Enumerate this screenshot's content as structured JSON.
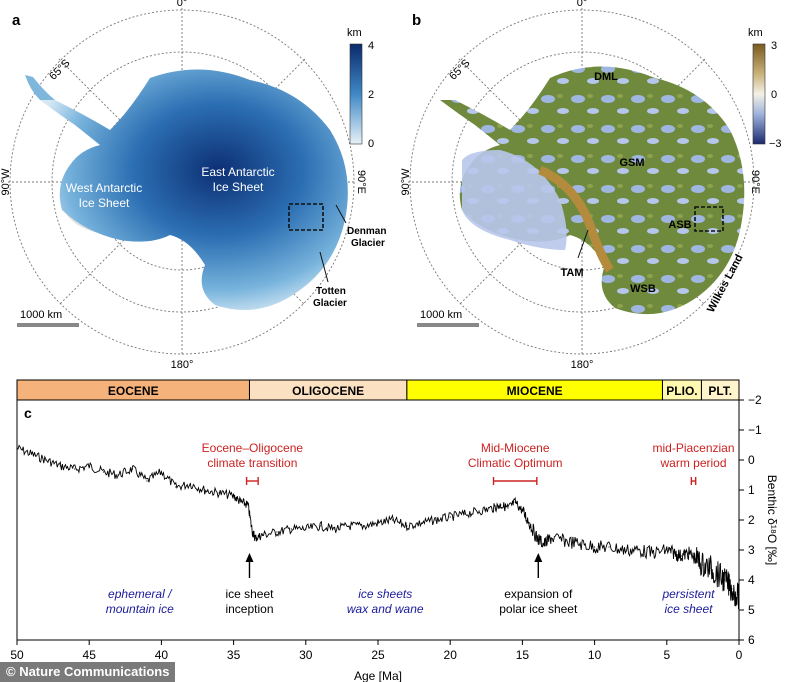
{
  "panel_a": {
    "letter": "a",
    "labels": {
      "top": "0°",
      "bottom": "180°",
      "left": "90°W",
      "right": "90°E",
      "lat": "65°S"
    },
    "regions": {
      "east_line1": "East Antarctic",
      "east_line2": "Ice Sheet",
      "west_line1": "West Antarctic",
      "west_line2": "Ice Sheet",
      "denman_line1": "Denman",
      "denman_line2": "Glacier",
      "totten_line1": "Totten",
      "totten_line2": "Glacier"
    },
    "scale_bar": "1000 km",
    "colorbar": {
      "unit": "km",
      "ticks": [
        "4",
        "2",
        "0"
      ],
      "colors": {
        "top": "#0b2a6b",
        "mid": "#3f88c5",
        "bottom": "#e8f1f8"
      }
    }
  },
  "panel_b": {
    "letter": "b",
    "labels": {
      "top": "0°",
      "bottom": "180°",
      "left": "90°W",
      "right": "90°E",
      "lat": "65°S"
    },
    "regions": {
      "dml": "DML",
      "gsm": "GSM",
      "asb": "ASB",
      "tam": "TAM",
      "wsb": "WSB",
      "wilkes": "Wilkes Land"
    },
    "scale_bar": "1000 km",
    "colorbar": {
      "unit": "km",
      "ticks": [
        "3",
        "0",
        "−3"
      ],
      "colors": {
        "top": "#7a5a1e",
        "upper": "#c9b27a",
        "mid": "#f4f1e6",
        "lower": "#9fb4dd",
        "bottom": "#1c2a6e"
      }
    }
  },
  "epochs": [
    {
      "name": "EOCENE",
      "start": 50,
      "end": 33.9,
      "color": "#f5b27a"
    },
    {
      "name": "OLIGOCENE",
      "start": 33.9,
      "end": 23,
      "color": "#fbe0c2"
    },
    {
      "name": "MIOCENE",
      "start": 23,
      "end": 5.3,
      "color": "#ffff00"
    },
    {
      "name": "PLIO.",
      "start": 5.3,
      "end": 2.6,
      "color": "#fff8b0"
    },
    {
      "name": "PLT.",
      "start": 2.6,
      "end": 0,
      "color": "#fff4cc"
    }
  ],
  "chart_data": {
    "type": "line",
    "panel": "c",
    "xlabel": "Age [Ma]",
    "ylabel": "Benthic δ¹⁸O [‰]",
    "xlim": [
      50,
      0
    ],
    "ylim": [
      6,
      -2
    ],
    "y_inverted": true,
    "y_axis_side": "right",
    "xticks": [
      50,
      45,
      40,
      35,
      30,
      25,
      20,
      15,
      10,
      5,
      0
    ],
    "yticks": [
      -2,
      -1,
      0,
      1,
      2,
      3,
      4,
      5,
      6
    ],
    "series": [
      {
        "x": [
          50,
          49,
          48,
          47,
          46,
          45,
          44,
          43,
          42,
          41,
          40,
          39,
          38,
          37,
          36,
          35,
          34.5,
          34,
          33.7,
          33.5,
          33,
          32,
          31,
          30,
          29,
          28,
          27,
          26,
          25,
          24,
          23,
          22,
          21,
          20,
          19,
          18,
          17,
          16.5,
          16,
          15.5,
          15,
          14.5,
          14,
          13.5,
          13,
          12,
          11,
          10,
          9,
          8,
          7,
          6,
          5,
          4.5,
          4,
          3.5,
          3,
          2.5,
          2,
          1.5,
          1,
          0.5,
          0
        ],
        "y": [
          -0.4,
          -0.2,
          0.0,
          0.2,
          0.3,
          0.2,
          0.4,
          0.5,
          0.3,
          0.7,
          0.4,
          0.9,
          0.8,
          1.0,
          1.1,
          1.2,
          1.4,
          1.5,
          2.4,
          2.6,
          2.5,
          2.4,
          2.3,
          2.3,
          2.2,
          2.3,
          2.2,
          2.2,
          2.1,
          2.0,
          2.2,
          2.1,
          2.0,
          1.9,
          1.8,
          1.7,
          1.6,
          1.5,
          1.6,
          1.4,
          1.7,
          2.1,
          2.6,
          2.8,
          2.6,
          2.7,
          2.8,
          2.9,
          2.9,
          3.0,
          3.0,
          3.1,
          3.0,
          3.1,
          3.2,
          3.1,
          3.3,
          3.5,
          3.6,
          3.8,
          4.0,
          4.3,
          4.6
        ]
      }
    ],
    "events": [
      {
        "line1": "Eocene–Oligocene",
        "line2": "climate transition",
        "from": 34.1,
        "to": 33.3
      },
      {
        "line1": "Mid-Miocene",
        "line2": "Climatic Optimum",
        "from": 17,
        "to": 14
      },
      {
        "line1": "mid-Piacenzian",
        "line2": "warm period",
        "from": 3.3,
        "to": 3.0
      }
    ],
    "arrows": [
      {
        "x": 33.9,
        "line1": "ice sheet",
        "line2": "inception"
      },
      {
        "x": 13.9,
        "line1": "expansion of",
        "line2": "polar ice sheet"
      }
    ],
    "phases": [
      {
        "x": 41.5,
        "line1": "ephemeral /",
        "line2": "mountain ice"
      },
      {
        "x": 24.5,
        "line1": "ice sheets",
        "line2": "wax and wane"
      },
      {
        "x": 3.5,
        "line1": "persistent",
        "line2": "ice sheet"
      }
    ],
    "colors": {
      "event": "#cc2222",
      "phase": "#1a1a9a",
      "line": "#000000"
    }
  },
  "credit": "© Nature Communications"
}
